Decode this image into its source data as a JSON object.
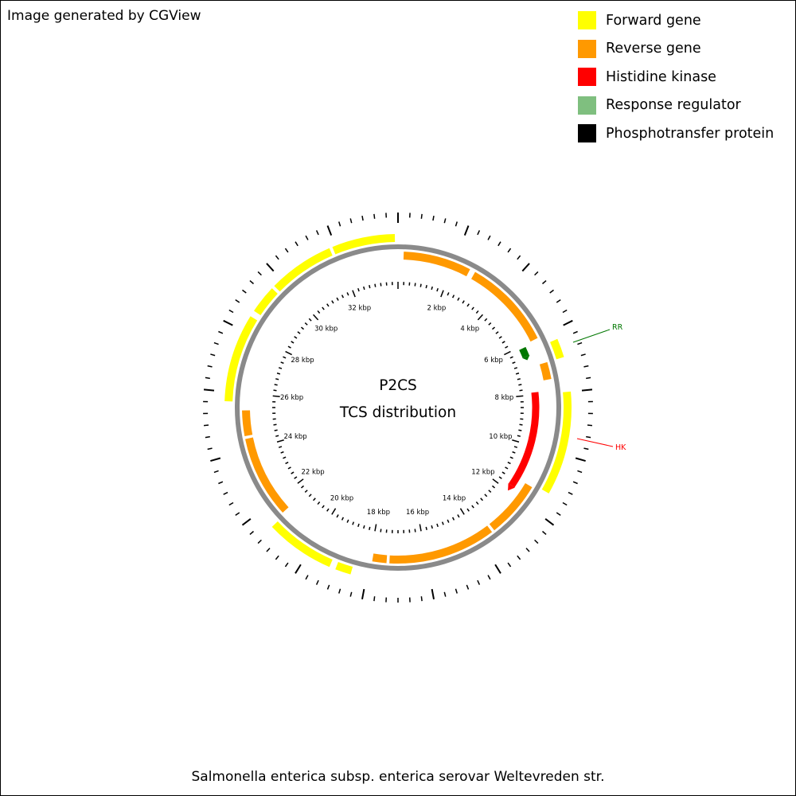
{
  "header": {
    "credit": "Image generated by CGView"
  },
  "legend": [
    {
      "label": "Forward gene",
      "color": "#ffff00"
    },
    {
      "label": "Reverse gene",
      "color": "#ff9900"
    },
    {
      "label": "Histidine kinase",
      "color": "#ff0000"
    },
    {
      "label": "Response regulator",
      "color": "#7fbf7f"
    },
    {
      "label": "Phosphotransfer protein",
      "color": "#000000"
    }
  ],
  "map": {
    "title_line1": "P2CS",
    "title_line2": "TCS distribution",
    "sequence_length_kbp": 34,
    "tick_labels": [
      "2 kbp",
      "4 kbp",
      "6 kbp",
      "8 kbp",
      "10 kbp",
      "12 kbp",
      "14 kbp",
      "16 kbp",
      "18 kbp",
      "20 kbp",
      "22 kbp",
      "24 kbp",
      "26 kbp",
      "28 kbp",
      "30 kbp",
      "32 kbp"
    ],
    "forward_genes_kbp": [
      [
        29.7,
        31.8
      ],
      [
        31.9,
        33.9
      ],
      [
        6.3,
        6.9
      ],
      [
        8.0,
        11.3
      ],
      [
        18.5,
        19.0
      ],
      [
        19.2,
        21.4
      ],
      [
        25.7,
        28.5
      ],
      [
        28.7,
        29.6
      ]
    ],
    "reverse_genes_kbp": [
      [
        0.2,
        2.6
      ],
      [
        2.8,
        6.0
      ],
      [
        6.9,
        7.5
      ],
      [
        11.4,
        13.4
      ],
      [
        13.5,
        17.3
      ],
      [
        17.4,
        17.9
      ],
      [
        21.5,
        24.4
      ],
      [
        24.5,
        25.4
      ]
    ],
    "histidine_kinase_kbp": [
      7.9,
      12.0
    ],
    "response_regulator_kbp": [
      6.1,
      6.6
    ],
    "callouts": [
      {
        "label": "RR",
        "color": "#007700"
      },
      {
        "label": "HK",
        "color": "#ff0000"
      }
    ]
  },
  "footer": {
    "caption": "Salmonella enterica subsp. enterica serovar Weltevreden str."
  }
}
